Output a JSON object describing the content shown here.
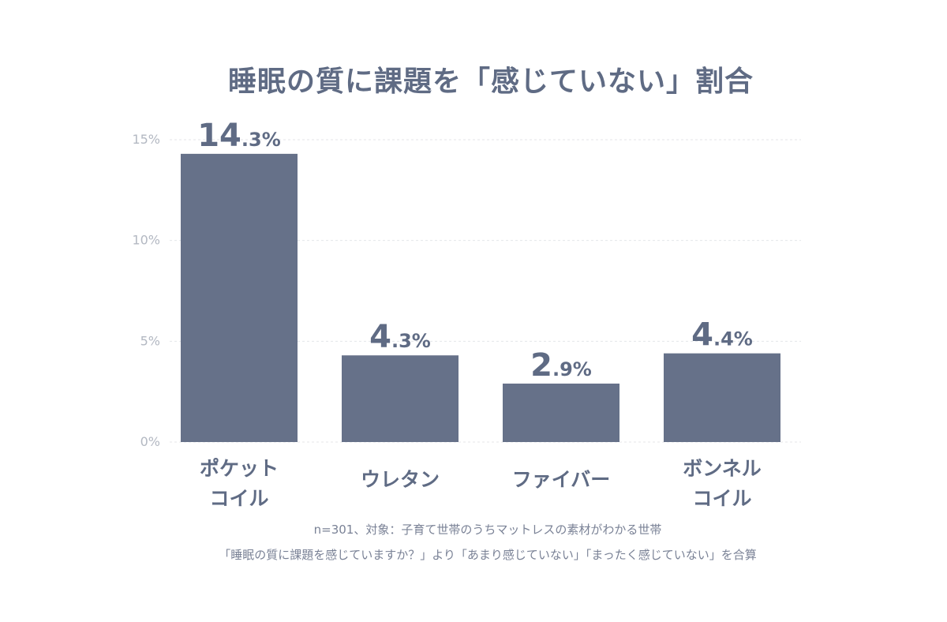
{
  "chart_data": {
    "type": "bar",
    "title": "睡眠の質に課題を「感じていない」割合",
    "categories": [
      [
        "ポケット",
        "コイル"
      ],
      [
        "ウレタン"
      ],
      [
        "ファイバー"
      ],
      [
        "ボンネル",
        "コイル"
      ]
    ],
    "values": [
      14.3,
      4.3,
      2.9,
      4.4
    ],
    "value_labels": [
      {
        "main": "14",
        "rest": ".3%"
      },
      {
        "main": "4",
        "rest": ".3%"
      },
      {
        "main": "2",
        "rest": ".9%"
      },
      {
        "main": "4",
        "rest": ".4%"
      }
    ],
    "yticks": [
      0,
      5,
      10,
      15
    ],
    "ytick_labels": [
      "0%",
      "5%",
      "10%",
      "15%"
    ],
    "ylim": [
      0,
      15
    ],
    "grid": true,
    "bar_color": "#667189"
  },
  "notes": {
    "line1": "n=301、対象：子育て世帯のうちマットレスの素材がわかる世帯",
    "line2": "「睡眠の質に課題を感じていますか？」より「あまり感じていない」「まったく感じていない」を合算"
  },
  "colors": {
    "text": "#5f6b84",
    "axis_text": "#b3b8c2",
    "grid": "#e4e6ea"
  }
}
